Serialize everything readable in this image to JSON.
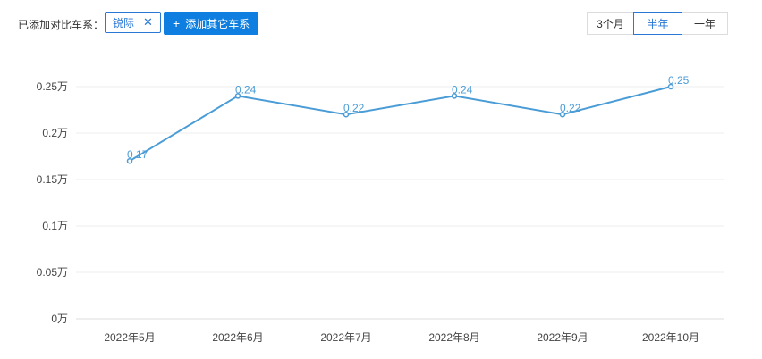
{
  "filter": {
    "label": "已添加对比车系：",
    "tags": [
      {
        "name": "锐际",
        "remove_icon": "close-icon"
      }
    ],
    "add_button": "添加其它车系",
    "add_icon": "plus-icon"
  },
  "range": {
    "options": [
      "3个月",
      "半年",
      "一年"
    ],
    "selected": "半年"
  },
  "colors": {
    "accent": "#2a78d6",
    "button_bg": "#0e7ee0",
    "line": "#4a9cd6",
    "grid": "#ececec"
  },
  "chart_data": {
    "type": "line",
    "title": "",
    "xlabel": "",
    "ylabel": "",
    "categories": [
      "2022年5月",
      "2022年6月",
      "2022年7月",
      "2022年8月",
      "2022年9月",
      "2022年10月"
    ],
    "series": [
      {
        "values": [
          0.17,
          0.24,
          0.22,
          0.24,
          0.22,
          0.25
        ]
      }
    ],
    "data_labels": [
      "0.17",
      "0.24",
      "0.22",
      "0.24",
      "0.22",
      "0.25"
    ],
    "y_ticks": [
      0,
      0.05,
      0.1,
      0.15,
      0.2,
      0.25
    ],
    "y_tick_labels": [
      "0万",
      "0.05万",
      "0.1万",
      "0.15万",
      "0.2万",
      "0.25万"
    ],
    "ylim": [
      0,
      0.25
    ],
    "grid": true,
    "legend": "none"
  }
}
